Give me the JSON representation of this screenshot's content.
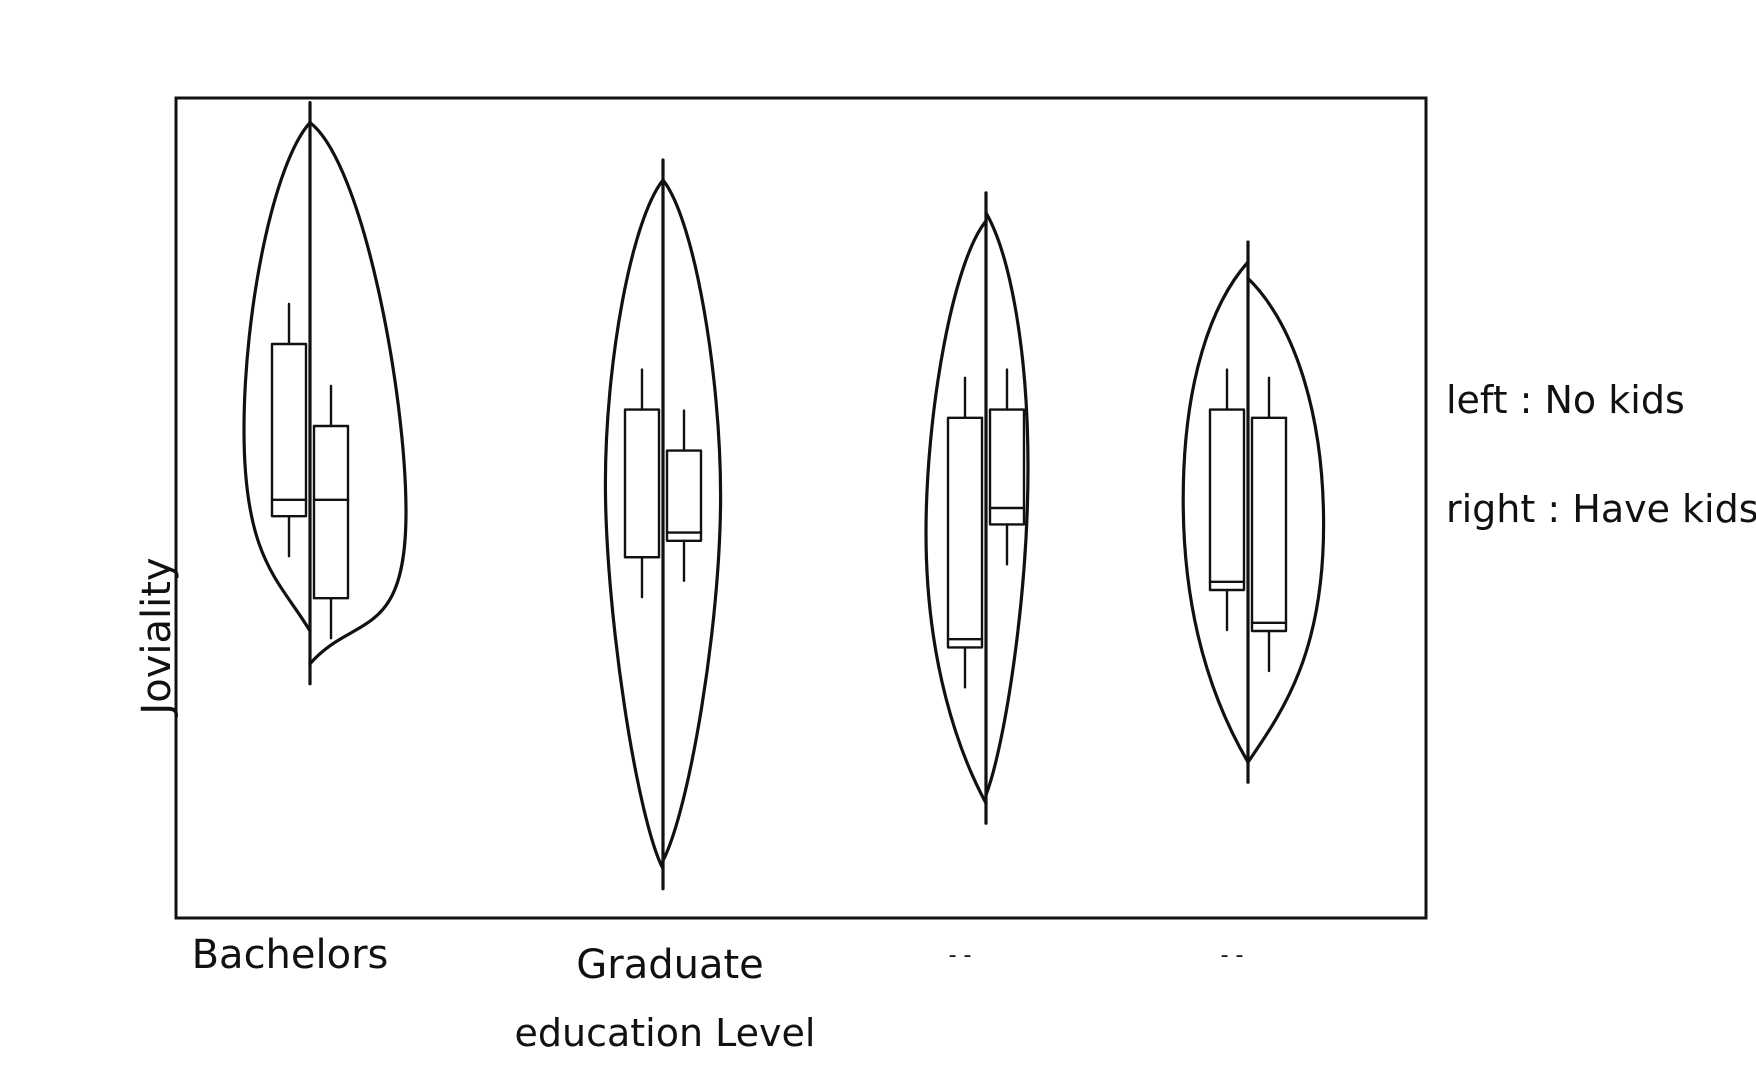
{
  "chart_data": {
    "type": "violin",
    "style": "hand-drawn sketch, split violins with inner box plots",
    "xlabel": "education Level",
    "ylabel": "Joviality",
    "categories": [
      "Bachelors",
      "Graduate",
      "- -",
      "- -"
    ],
    "split": {
      "left": "No kids",
      "right": "Have kids"
    },
    "legend_lines": [
      "left : No kids",
      "right : Have kids"
    ],
    "legend_position": "right",
    "grid": false,
    "y_axis_ticks": false,
    "series": [
      {
        "category": "Bachelors",
        "left": {
          "max": 0.97,
          "q3": 0.7,
          "median": 0.51,
          "q1": 0.49,
          "min": 0.35,
          "width": 0.55
        },
        "right": {
          "max": 0.97,
          "q3": 0.6,
          "median": 0.51,
          "q1": 0.39,
          "min": 0.31,
          "width": 0.8
        }
      },
      {
        "category": "Graduate",
        "left": {
          "max": 0.9,
          "q3": 0.62,
          "median": 0.44,
          "q1": 0.44,
          "min": 0.06,
          "width": 0.48
        },
        "right": {
          "max": 0.9,
          "q3": 0.57,
          "median": 0.47,
          "q1": 0.46,
          "min": 0.07,
          "width": 0.48
        }
      },
      {
        "category": "- -",
        "left": {
          "max": 0.85,
          "q3": 0.61,
          "median": 0.34,
          "q1": 0.33,
          "min": 0.14,
          "width": 0.5
        },
        "right": {
          "max": 0.86,
          "q3": 0.62,
          "median": 0.5,
          "q1": 0.48,
          "min": 0.15,
          "width": 0.35
        }
      },
      {
        "category": "- -",
        "left": {
          "max": 0.8,
          "q3": 0.62,
          "median": 0.41,
          "q1": 0.4,
          "min": 0.19,
          "width": 0.54
        },
        "right": {
          "max": 0.78,
          "q3": 0.61,
          "median": 0.36,
          "q1": 0.35,
          "min": 0.19,
          "width": 0.63
        }
      }
    ]
  }
}
